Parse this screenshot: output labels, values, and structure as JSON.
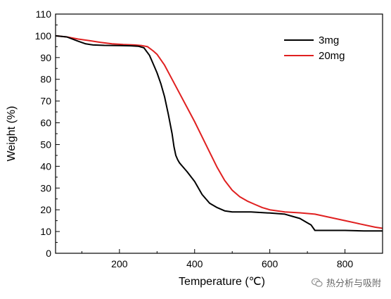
{
  "chart_data": {
    "type": "line",
    "xlabel": "Temperature (℃)",
    "ylabel": "Weight (%)",
    "xlim": [
      30,
      900
    ],
    "ylim": [
      0,
      110
    ],
    "xticks": [
      200,
      400,
      600,
      800
    ],
    "yticks": [
      0,
      10,
      20,
      30,
      40,
      50,
      60,
      70,
      80,
      90,
      100,
      110
    ],
    "legend": {
      "position": "top-right"
    },
    "series": [
      {
        "name": "3mg",
        "color": "#000000",
        "x": [
          30,
          60,
          90,
          110,
          130,
          160,
          200,
          230,
          250,
          265,
          280,
          290,
          300,
          310,
          320,
          330,
          340,
          345,
          350,
          355,
          360,
          370,
          380,
          400,
          420,
          440,
          460,
          480,
          500,
          550,
          600,
          640,
          660,
          680,
          700,
          710,
          720,
          730,
          750,
          800,
          850,
          900
        ],
        "y": [
          100,
          99.5,
          97.5,
          96.3,
          95.8,
          95.6,
          95.5,
          95.4,
          95.2,
          94.5,
          91,
          87,
          83,
          78,
          72,
          64,
          55,
          49,
          45,
          43,
          41.5,
          39.5,
          37.5,
          33,
          27,
          23,
          21,
          19.5,
          19,
          19,
          18.5,
          18,
          17,
          16,
          14,
          13,
          10.5,
          10.5,
          10.5,
          10.5,
          10.3,
          10.3
        ]
      },
      {
        "name": "20mg",
        "color": "#e02020",
        "x": [
          30,
          60,
          90,
          120,
          150,
          180,
          210,
          240,
          260,
          275,
          290,
          300,
          320,
          340,
          360,
          380,
          400,
          420,
          440,
          460,
          480,
          500,
          520,
          540,
          560,
          580,
          600,
          640,
          680,
          720,
          760,
          800,
          840,
          880,
          900
        ],
        "y": [
          100,
          99.5,
          98.5,
          97.8,
          97,
          96.3,
          96,
          95.8,
          95.5,
          95,
          93,
          91.5,
          86.5,
          80,
          73.5,
          67,
          60.5,
          53.5,
          46.5,
          39.5,
          33.5,
          29,
          26,
          24,
          22.5,
          21,
          20,
          19,
          18.6,
          18,
          16.5,
          15,
          13.5,
          12,
          11.5
        ]
      }
    ]
  },
  "watermark": {
    "text": "热分析与吸附",
    "icon": "wechat-icon"
  }
}
